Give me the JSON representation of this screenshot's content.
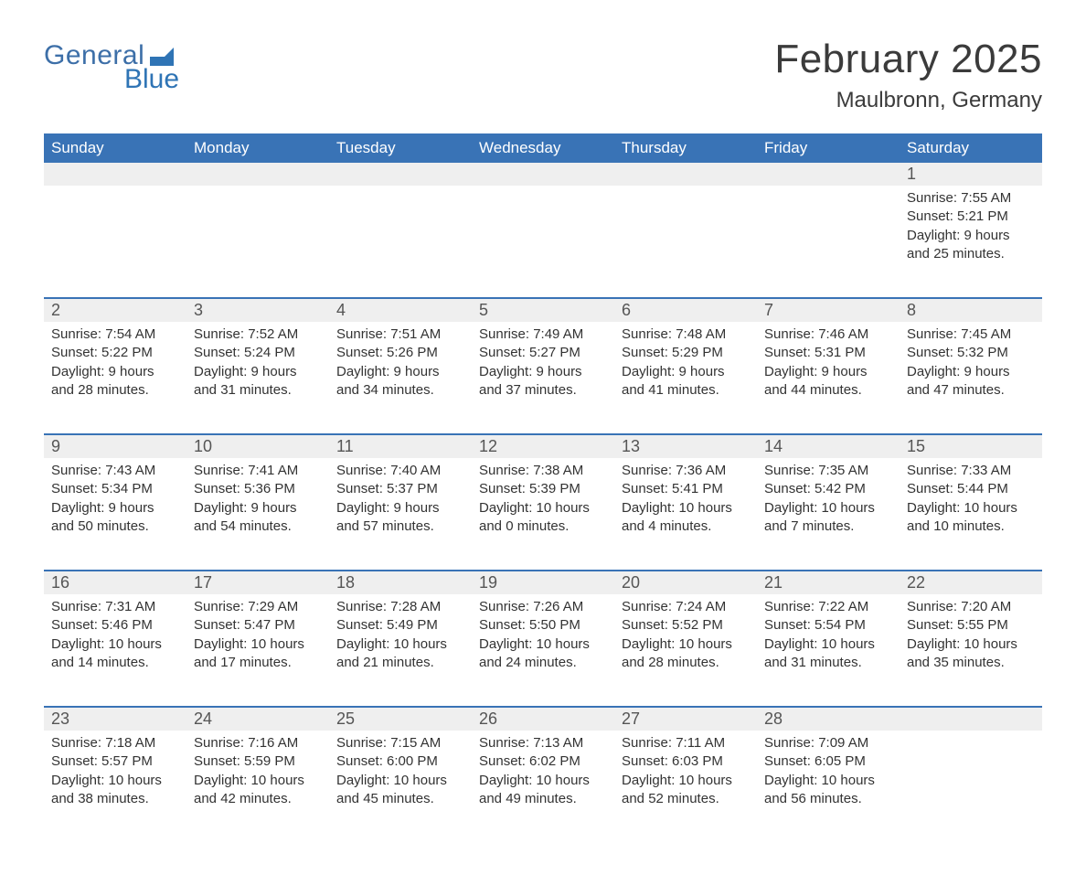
{
  "brand": {
    "word1": "General",
    "word2": "Blue",
    "color": "#3973b6"
  },
  "title": "February 2025",
  "location": "Maulbronn, Germany",
  "colors": {
    "header_bg": "#3973b6",
    "header_text": "#ffffff",
    "daynum_bg": "#efefef",
    "week_divider": "#3973b6",
    "body_text": "#333333",
    "daynum_text": "#555555",
    "background": "#ffffff"
  },
  "typography": {
    "title_fontsize": 44,
    "location_fontsize": 24,
    "header_fontsize": 17,
    "daynum_fontsize": 18,
    "cell_fontsize": 15
  },
  "day_headers": [
    "Sunday",
    "Monday",
    "Tuesday",
    "Wednesday",
    "Thursday",
    "Friday",
    "Saturday"
  ],
  "weeks": [
    [
      null,
      null,
      null,
      null,
      null,
      null,
      {
        "n": "1",
        "sr": "Sunrise: 7:55 AM",
        "ss": "Sunset: 5:21 PM",
        "d1": "Daylight: 9 hours",
        "d2": "and 25 minutes."
      }
    ],
    [
      {
        "n": "2",
        "sr": "Sunrise: 7:54 AM",
        "ss": "Sunset: 5:22 PM",
        "d1": "Daylight: 9 hours",
        "d2": "and 28 minutes."
      },
      {
        "n": "3",
        "sr": "Sunrise: 7:52 AM",
        "ss": "Sunset: 5:24 PM",
        "d1": "Daylight: 9 hours",
        "d2": "and 31 minutes."
      },
      {
        "n": "4",
        "sr": "Sunrise: 7:51 AM",
        "ss": "Sunset: 5:26 PM",
        "d1": "Daylight: 9 hours",
        "d2": "and 34 minutes."
      },
      {
        "n": "5",
        "sr": "Sunrise: 7:49 AM",
        "ss": "Sunset: 5:27 PM",
        "d1": "Daylight: 9 hours",
        "d2": "and 37 minutes."
      },
      {
        "n": "6",
        "sr": "Sunrise: 7:48 AM",
        "ss": "Sunset: 5:29 PM",
        "d1": "Daylight: 9 hours",
        "d2": "and 41 minutes."
      },
      {
        "n": "7",
        "sr": "Sunrise: 7:46 AM",
        "ss": "Sunset: 5:31 PM",
        "d1": "Daylight: 9 hours",
        "d2": "and 44 minutes."
      },
      {
        "n": "8",
        "sr": "Sunrise: 7:45 AM",
        "ss": "Sunset: 5:32 PM",
        "d1": "Daylight: 9 hours",
        "d2": "and 47 minutes."
      }
    ],
    [
      {
        "n": "9",
        "sr": "Sunrise: 7:43 AM",
        "ss": "Sunset: 5:34 PM",
        "d1": "Daylight: 9 hours",
        "d2": "and 50 minutes."
      },
      {
        "n": "10",
        "sr": "Sunrise: 7:41 AM",
        "ss": "Sunset: 5:36 PM",
        "d1": "Daylight: 9 hours",
        "d2": "and 54 minutes."
      },
      {
        "n": "11",
        "sr": "Sunrise: 7:40 AM",
        "ss": "Sunset: 5:37 PM",
        "d1": "Daylight: 9 hours",
        "d2": "and 57 minutes."
      },
      {
        "n": "12",
        "sr": "Sunrise: 7:38 AM",
        "ss": "Sunset: 5:39 PM",
        "d1": "Daylight: 10 hours",
        "d2": "and 0 minutes."
      },
      {
        "n": "13",
        "sr": "Sunrise: 7:36 AM",
        "ss": "Sunset: 5:41 PM",
        "d1": "Daylight: 10 hours",
        "d2": "and 4 minutes."
      },
      {
        "n": "14",
        "sr": "Sunrise: 7:35 AM",
        "ss": "Sunset: 5:42 PM",
        "d1": "Daylight: 10 hours",
        "d2": "and 7 minutes."
      },
      {
        "n": "15",
        "sr": "Sunrise: 7:33 AM",
        "ss": "Sunset: 5:44 PM",
        "d1": "Daylight: 10 hours",
        "d2": "and 10 minutes."
      }
    ],
    [
      {
        "n": "16",
        "sr": "Sunrise: 7:31 AM",
        "ss": "Sunset: 5:46 PM",
        "d1": "Daylight: 10 hours",
        "d2": "and 14 minutes."
      },
      {
        "n": "17",
        "sr": "Sunrise: 7:29 AM",
        "ss": "Sunset: 5:47 PM",
        "d1": "Daylight: 10 hours",
        "d2": "and 17 minutes."
      },
      {
        "n": "18",
        "sr": "Sunrise: 7:28 AM",
        "ss": "Sunset: 5:49 PM",
        "d1": "Daylight: 10 hours",
        "d2": "and 21 minutes."
      },
      {
        "n": "19",
        "sr": "Sunrise: 7:26 AM",
        "ss": "Sunset: 5:50 PM",
        "d1": "Daylight: 10 hours",
        "d2": "and 24 minutes."
      },
      {
        "n": "20",
        "sr": "Sunrise: 7:24 AM",
        "ss": "Sunset: 5:52 PM",
        "d1": "Daylight: 10 hours",
        "d2": "and 28 minutes."
      },
      {
        "n": "21",
        "sr": "Sunrise: 7:22 AM",
        "ss": "Sunset: 5:54 PM",
        "d1": "Daylight: 10 hours",
        "d2": "and 31 minutes."
      },
      {
        "n": "22",
        "sr": "Sunrise: 7:20 AM",
        "ss": "Sunset: 5:55 PM",
        "d1": "Daylight: 10 hours",
        "d2": "and 35 minutes."
      }
    ],
    [
      {
        "n": "23",
        "sr": "Sunrise: 7:18 AM",
        "ss": "Sunset: 5:57 PM",
        "d1": "Daylight: 10 hours",
        "d2": "and 38 minutes."
      },
      {
        "n": "24",
        "sr": "Sunrise: 7:16 AM",
        "ss": "Sunset: 5:59 PM",
        "d1": "Daylight: 10 hours",
        "d2": "and 42 minutes."
      },
      {
        "n": "25",
        "sr": "Sunrise: 7:15 AM",
        "ss": "Sunset: 6:00 PM",
        "d1": "Daylight: 10 hours",
        "d2": "and 45 minutes."
      },
      {
        "n": "26",
        "sr": "Sunrise: 7:13 AM",
        "ss": "Sunset: 6:02 PM",
        "d1": "Daylight: 10 hours",
        "d2": "and 49 minutes."
      },
      {
        "n": "27",
        "sr": "Sunrise: 7:11 AM",
        "ss": "Sunset: 6:03 PM",
        "d1": "Daylight: 10 hours",
        "d2": "and 52 minutes."
      },
      {
        "n": "28",
        "sr": "Sunrise: 7:09 AM",
        "ss": "Sunset: 6:05 PM",
        "d1": "Daylight: 10 hours",
        "d2": "and 56 minutes."
      },
      null
    ]
  ]
}
